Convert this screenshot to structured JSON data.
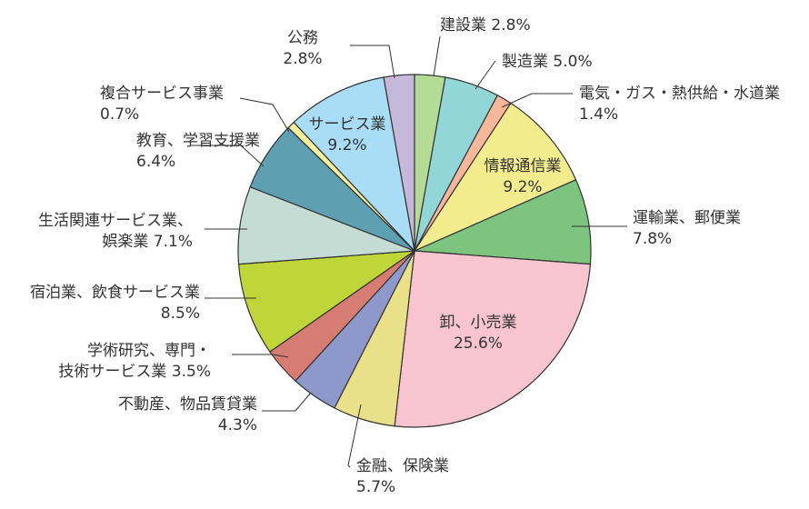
{
  "chart_data": {
    "type": "pie",
    "title": "",
    "start_angle_deg": 0,
    "direction": "clockwise",
    "legend": "none",
    "slices": [
      {
        "label": "建設業",
        "value_text": "2.8%",
        "value": 2.8,
        "color": "#b5dc96"
      },
      {
        "label": "製造業",
        "value_text": "5.0%",
        "value": 5.0,
        "color": "#92d6d8"
      },
      {
        "label": "電気・ガス・熱供給・水道業",
        "value_text": "1.4%",
        "value": 1.4,
        "color": "#f7b79b"
      },
      {
        "label": "情報通信業",
        "value_text": "9.2%",
        "value": 9.2,
        "color": "#f3ec8e"
      },
      {
        "label": "運輸業、郵便業",
        "value_text": "7.8%",
        "value": 7.8,
        "color": "#7cc47f"
      },
      {
        "label": "卸、小売業",
        "value_text": "25.6%",
        "value": 25.6,
        "color": "#f7c4d0"
      },
      {
        "label": "金融、保険業",
        "value_text": "5.7%",
        "value": 5.7,
        "color": "#ebe08a"
      },
      {
        "label": "不動産、物品賃貸業",
        "value_text": "4.3%",
        "value": 4.3,
        "color": "#8f98cb"
      },
      {
        "label_lines": [
          "学術研究、専門・",
          "技術サービス業"
        ],
        "value_text": "3.5%",
        "value": 3.5,
        "color": "#d67c72"
      },
      {
        "label": "宿泊業、飲食サービス業",
        "value_text": "8.5%",
        "value": 8.5,
        "color": "#bfd63a"
      },
      {
        "label_lines": [
          "生活関連サービス業、",
          "娯楽業"
        ],
        "value_text": "7.1%",
        "value": 7.1,
        "color": "#c5dcd4"
      },
      {
        "label": "教育、学習支援業",
        "value_text": "6.4%",
        "value": 6.4,
        "color": "#5f9fb2"
      },
      {
        "label": "複合サービス事業",
        "value_text": "0.7%",
        "value": 0.7,
        "color": "#f5f0a0"
      },
      {
        "label": "サービス業",
        "value_text": "9.2%",
        "value": 9.2,
        "color": "#a9dcf5"
      },
      {
        "label": "公務",
        "value_text": "2.8%",
        "value": 2.8,
        "color": "#c5b8da"
      }
    ]
  }
}
